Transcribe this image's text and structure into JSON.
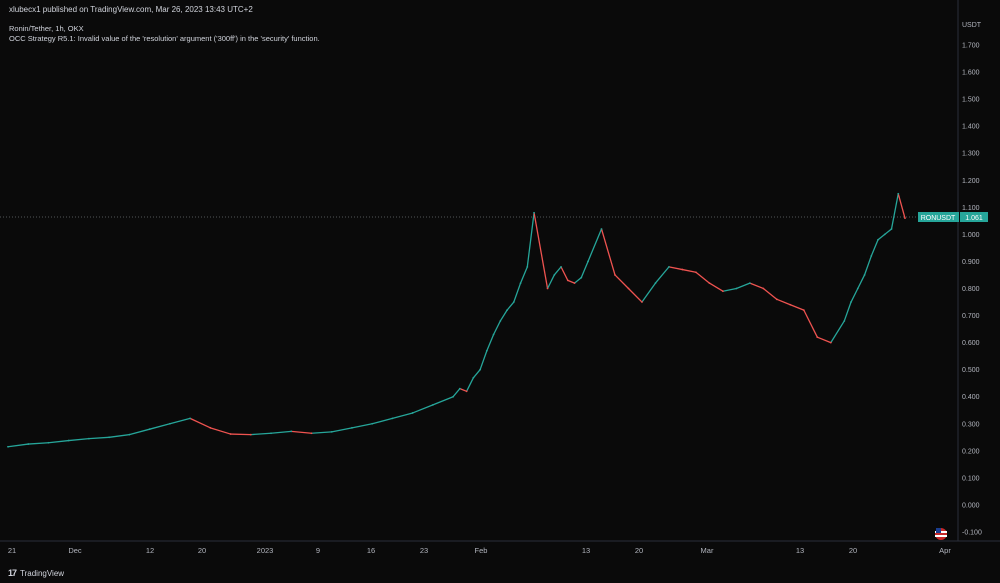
{
  "header": {
    "published": "xlubecx1 published on TradingView.com, Mar 26, 2023 13:43 UTC+2",
    "symbol": "Ronin/Tether, 1h, OKX",
    "error": "OCC Strategy R5.1: Invalid value of the 'resolution' argument ('300ff') in the 'security' function.",
    "currency": "USDT"
  },
  "footer": {
    "brand": "TradingView",
    "brand_mark": "17"
  },
  "last_price": {
    "symbol": "RONUSDT",
    "value": "1.061"
  },
  "colors": {
    "up": "#26a69a",
    "down": "#ef5350",
    "bg": "#0a0a0a",
    "text": "#b2b5be",
    "tag": "#26a69a"
  },
  "chart_data": {
    "type": "line",
    "x_ticks": [
      "21",
      "Dec",
      "12",
      "20",
      "2023",
      "9",
      "16",
      "23",
      "Feb",
      "13",
      "20",
      "Mar",
      "13",
      "20",
      "Apr"
    ],
    "y_ticks": [
      "1.700",
      "1.600",
      "1.500",
      "1.400",
      "1.300",
      "1.200",
      "1.100",
      "1.000",
      "0.900",
      "0.800",
      "0.700",
      "0.600",
      "0.500",
      "0.400",
      "0.300",
      "0.200",
      "0.100",
      "0.000",
      "-0.100"
    ],
    "ylim": [
      -0.1,
      1.7
    ],
    "grid": false,
    "x": [
      0,
      3,
      6,
      9,
      12,
      15,
      18,
      21,
      24,
      27,
      30,
      33,
      36,
      39,
      42,
      45,
      48,
      51,
      54,
      57,
      60,
      63,
      66,
      67,
      68,
      69,
      70,
      71,
      72,
      73,
      74,
      75,
      76,
      77,
      78,
      80,
      81,
      82,
      83,
      84,
      85,
      86,
      88,
      90,
      92,
      94,
      96,
      98,
      100,
      102,
      104,
      106,
      108,
      110,
      112,
      114,
      116,
      118,
      120,
      122,
      124,
      125,
      126,
      127,
      128,
      129,
      130,
      131,
      132,
      133
    ],
    "values": [
      0.215,
      0.225,
      0.23,
      0.238,
      0.245,
      0.25,
      0.26,
      0.28,
      0.3,
      0.32,
      0.285,
      0.262,
      0.26,
      0.265,
      0.272,
      0.265,
      0.27,
      0.285,
      0.3,
      0.32,
      0.34,
      0.37,
      0.4,
      0.43,
      0.42,
      0.47,
      0.5,
      0.57,
      0.63,
      0.68,
      0.72,
      0.75,
      0.82,
      0.88,
      1.08,
      0.8,
      0.85,
      0.88,
      0.83,
      0.82,
      0.84,
      0.9,
      1.02,
      0.85,
      0.8,
      0.75,
      0.82,
      0.88,
      0.87,
      0.86,
      0.82,
      0.79,
      0.8,
      0.82,
      0.8,
      0.76,
      0.74,
      0.72,
      0.62,
      0.6,
      0.68,
      0.75,
      0.8,
      0.85,
      0.92,
      0.98,
      1.0,
      1.02,
      1.15,
      1.06
    ]
  }
}
